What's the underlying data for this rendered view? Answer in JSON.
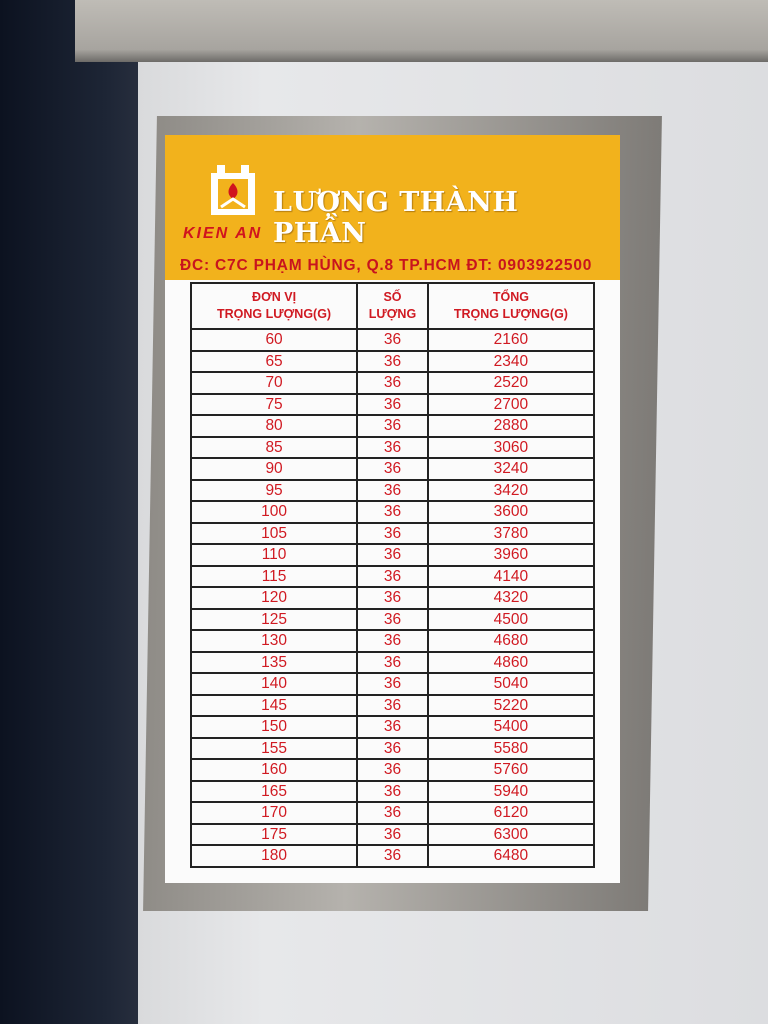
{
  "label": {
    "title": "LƯỢNG THÀNH PHẦN",
    "brand": "KIEN AN",
    "address": "ĐC: C7C PHẠM HÙNG, Q.8 TP.HCM   ĐT: 0903922500",
    "colors": {
      "header": "#f2b21c",
      "text": "#d01a22"
    },
    "logo_icon": "factory-furnace-logo"
  },
  "table": {
    "headers": [
      [
        "ĐƠN VỊ",
        "TRỌNG LƯỢNG(G)"
      ],
      [
        "SỐ",
        "LƯỢNG"
      ],
      [
        "TỔNG",
        "TRỌNG LƯỢNG(G)"
      ]
    ],
    "rows": [
      [
        "60",
        "36",
        "2160"
      ],
      [
        "65",
        "36",
        "2340"
      ],
      [
        "70",
        "36",
        "2520"
      ],
      [
        "75",
        "36",
        "2700"
      ],
      [
        "80",
        "36",
        "2880"
      ],
      [
        "85",
        "36",
        "3060"
      ],
      [
        "90",
        "36",
        "3240"
      ],
      [
        "95",
        "36",
        "3420"
      ],
      [
        "100",
        "36",
        "3600"
      ],
      [
        "105",
        "36",
        "3780"
      ],
      [
        "110",
        "36",
        "3960"
      ],
      [
        "115",
        "36",
        "4140"
      ],
      [
        "120",
        "36",
        "4320"
      ],
      [
        "125",
        "36",
        "4500"
      ],
      [
        "130",
        "36",
        "4680"
      ],
      [
        "135",
        "36",
        "4860"
      ],
      [
        "140",
        "36",
        "5040"
      ],
      [
        "145",
        "36",
        "5220"
      ],
      [
        "150",
        "36",
        "5400"
      ],
      [
        "155",
        "36",
        "5580"
      ],
      [
        "160",
        "36",
        "5760"
      ],
      [
        "165",
        "36",
        "5940"
      ],
      [
        "170",
        "36",
        "6120"
      ],
      [
        "175",
        "36",
        "6300"
      ],
      [
        "180",
        "36",
        "6480"
      ]
    ]
  }
}
